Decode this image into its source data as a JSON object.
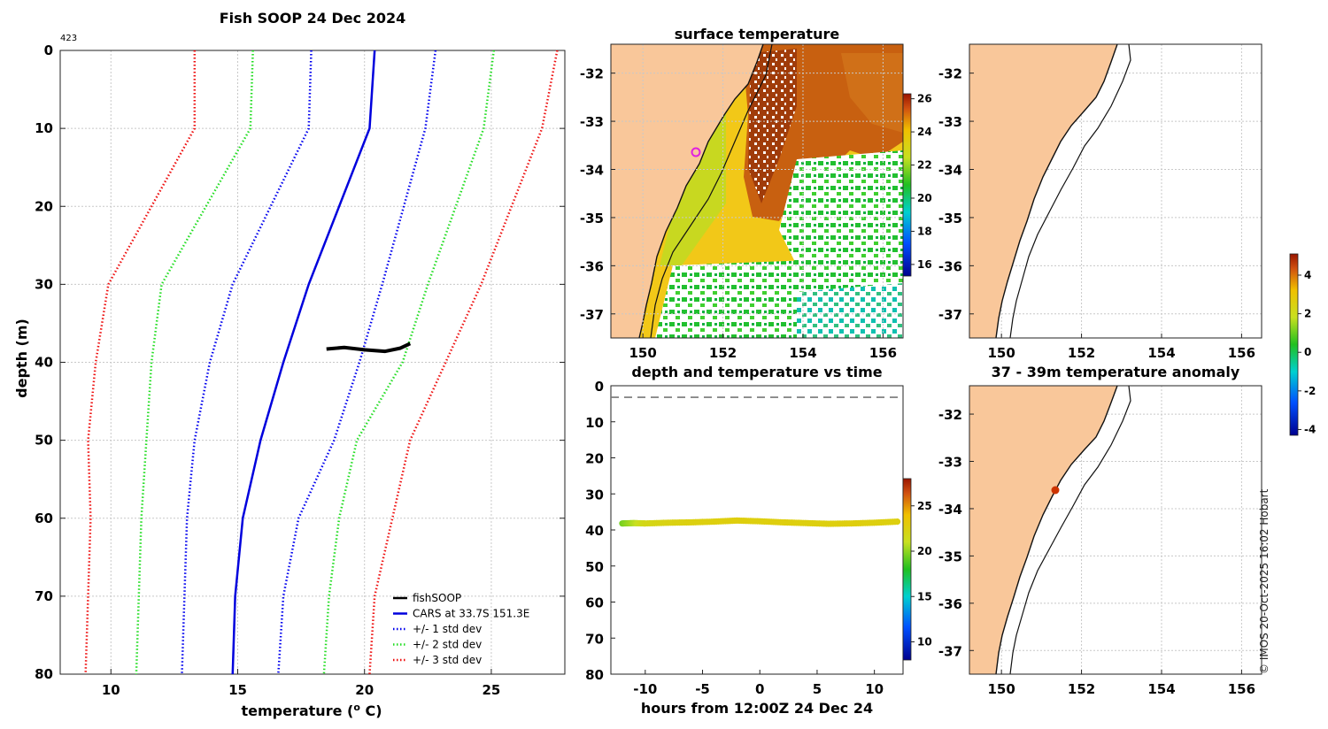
{
  "profile": {
    "title": "Fish SOOP 24 Dec 2024",
    "id_label": "423",
    "xlabel_prefix": "temperature (",
    "xlabel_sup": "o",
    "xlabel_suffix": " C)",
    "ylabel": "depth (m)",
    "chart_data": {
      "type": "line",
      "xlim": [
        8,
        27.9
      ],
      "ylim": [
        0,
        80
      ],
      "y_reversed": true,
      "xticks": [
        10,
        15,
        20,
        25
      ],
      "yticks": [
        0,
        10,
        20,
        30,
        40,
        50,
        60,
        70,
        80
      ],
      "depths": [
        0,
        10,
        30,
        40,
        50,
        60,
        70,
        80
      ],
      "series": [
        {
          "name": "CARS at 33.7S 151.3E",
          "color": "#0000dd",
          "style": "solid",
          "values": [
            20.4,
            20.2,
            17.8,
            16.8,
            15.9,
            15.2,
            14.9,
            14.8
          ]
        },
        {
          "name": "+/- 1 std dev (low)",
          "color": "#0000ee",
          "style": "dot",
          "values": [
            17.9,
            17.8,
            14.8,
            13.9,
            13.3,
            13.0,
            12.9,
            12.8
          ]
        },
        {
          "name": "+/- 1 std dev (high)",
          "color": "#0000ee",
          "style": "dot",
          "values": [
            22.8,
            22.4,
            20.7,
            19.8,
            18.8,
            17.4,
            16.8,
            16.6
          ]
        },
        {
          "name": "+/- 2 std dev (low)",
          "color": "#22dd22",
          "style": "dot",
          "values": [
            15.6,
            15.5,
            12.0,
            11.6,
            11.4,
            11.2,
            11.1,
            11.0
          ]
        },
        {
          "name": "+/- 2 std dev (high)",
          "color": "#22dd22",
          "style": "dot",
          "values": [
            25.1,
            24.7,
            22.5,
            21.5,
            19.7,
            19.0,
            18.6,
            18.4
          ]
        },
        {
          "name": "+/- 3 std dev (low)",
          "color": "#ee1111",
          "style": "dot",
          "values": [
            13.3,
            13.3,
            9.9,
            9.4,
            9.1,
            9.2,
            9.1,
            9.0
          ]
        },
        {
          "name": "+/- 3 std dev (high)",
          "color": "#ee1111",
          "style": "dot",
          "values": [
            27.6,
            27.0,
            24.6,
            23.2,
            21.8,
            21.1,
            20.4,
            20.2
          ]
        }
      ],
      "fishsoop": {
        "name": "fishSOOP",
        "color": "#000000",
        "points": [
          [
            18.5,
            38.3
          ],
          [
            19.2,
            38.1
          ],
          [
            20.0,
            38.4
          ],
          [
            20.8,
            38.6
          ],
          [
            21.4,
            38.2
          ],
          [
            21.8,
            37.6
          ]
        ]
      },
      "legend": [
        "fishSOOP",
        "CARS at 33.7S 151.3E",
        "+/- 1 std dev",
        "+/- 2 std dev",
        "+/- 3 std dev"
      ],
      "legend_colors": [
        "#000000",
        "#0000dd",
        "#0000ee",
        "#22dd22",
        "#ee1111"
      ],
      "legend_location": "bottom-right"
    }
  },
  "sst_map": {
    "title": "surface temperature",
    "lon_ticks": [
      "150",
      "152",
      "154",
      "156"
    ],
    "lat_ticks": [
      "-32",
      "-33",
      "-34",
      "-35",
      "-36",
      "-37"
    ],
    "colorbar_ticks": [
      "26",
      "24",
      "22",
      "20",
      "18",
      "16"
    ],
    "colorbar_range": [
      15.3,
      26.3
    ]
  },
  "bathy_map": {
    "lon_ticks": [
      "150",
      "152",
      "154",
      "156"
    ],
    "lat_ticks": [
      "-32",
      "-33",
      "-34",
      "-35",
      "-36",
      "-37"
    ]
  },
  "timeseries": {
    "title": "depth and temperature vs time",
    "xlabel": "hours from 12:00Z 24 Dec 24",
    "chart_data": {
      "type": "scatter",
      "xlim": [
        -13,
        12.5
      ],
      "ylim": [
        0,
        80
      ],
      "y_reversed": true,
      "xticks": [
        "-10",
        "-5",
        "0",
        "5",
        "10"
      ],
      "yticks": [
        "0",
        "10",
        "20",
        "30",
        "40",
        "50",
        "60",
        "70",
        "80"
      ],
      "dashed_line_depth": 3.2,
      "points": [
        [
          -12.0,
          38.2,
          19.5
        ],
        [
          -11.0,
          38.1,
          20.6
        ],
        [
          -10.0,
          38.2,
          21.8
        ],
        [
          -8.0,
          38.0,
          22.3
        ],
        [
          -6.0,
          37.9,
          22.5
        ],
        [
          -4.0,
          37.7,
          22.6
        ],
        [
          -2.0,
          37.4,
          22.7
        ],
        [
          0.0,
          37.6,
          22.6
        ],
        [
          2.0,
          37.9,
          22.7
        ],
        [
          4.0,
          38.1,
          22.6
        ],
        [
          6.0,
          38.3,
          22.6
        ],
        [
          8.0,
          38.2,
          22.7
        ],
        [
          10.0,
          38.0,
          22.6
        ],
        [
          12.0,
          37.7,
          22.6
        ]
      ],
      "colorbar_ticks": [
        "25",
        "20",
        "15",
        "10"
      ],
      "colorbar_range": [
        8,
        28
      ]
    }
  },
  "anomaly_map": {
    "title": "37 - 39m temperature anomaly",
    "lon_ticks": [
      "150",
      "152",
      "154",
      "156"
    ],
    "lat_ticks": [
      "-32",
      "-33",
      "-34",
      "-35",
      "-36",
      "-37"
    ],
    "colorbar_ticks": [
      "4",
      "2",
      "0",
      "-2",
      "-4"
    ],
    "colorbar_range": [
      -4.3,
      5.1
    ],
    "marker_label": "fishSOOP anomaly",
    "marker_color": "#cc3300"
  },
  "credit": "© IMOS 20-Oct-2025 16:02 Hobart"
}
